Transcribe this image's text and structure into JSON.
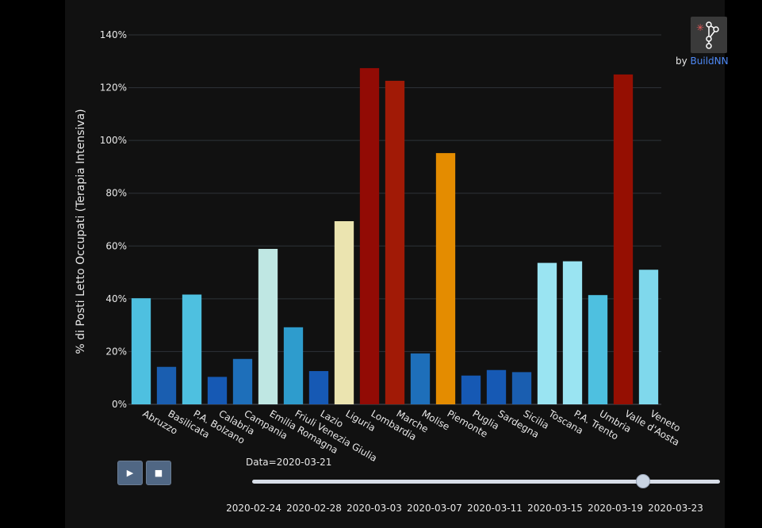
{
  "chart_data": {
    "type": "bar",
    "title": "",
    "xlabel": "",
    "ylabel": "% di Posti Letto Occupati (Terapia Intensiva)",
    "ylim": [
      0,
      140
    ],
    "yticks": [
      0,
      20,
      40,
      60,
      80,
      100,
      120,
      140
    ],
    "ytick_format": "{v}%",
    "grid": true,
    "categories": [
      "Abruzzo",
      "Basilicata",
      "P.A. Bolzano",
      "Calabria",
      "Campania",
      "Emilia Romagna",
      "Friuli Venezia Giulia",
      "Lazio",
      "Liguria",
      "Lombardia",
      "Marche",
      "Molise",
      "Piemonte",
      "Puglia",
      "Sardegna",
      "Sicilia",
      "Toscana",
      "P.A. Trento",
      "Umbria",
      "Valle d'Aosta",
      "Veneto"
    ],
    "values": [
      40.2,
      14.2,
      41.6,
      10.4,
      17.2,
      58.9,
      29.2,
      12.6,
      69.4,
      127.4,
      122.6,
      19.3,
      95.2,
      10.9,
      13.0,
      12.2,
      53.6,
      54.2,
      41.4,
      125.0,
      51.0
    ],
    "colors": [
      "#4ec0e0",
      "#1a5eb0",
      "#4ec0e0",
      "#1659b4",
      "#1e6fba",
      "#bfe7e3",
      "#2e9ccd",
      "#1659b4",
      "#ebe4b0",
      "#920b05",
      "#a11a06",
      "#1e6fba",
      "#e48c00",
      "#1659b4",
      "#1659b4",
      "#1a5eb0",
      "#9ae4f2",
      "#9ae4f2",
      "#4ec0e0",
      "#950f02",
      "#7fd8ec"
    ]
  },
  "controls": {
    "play_label": "▶",
    "stop_label": "■"
  },
  "slider": {
    "label": "Data=2020-03-21",
    "position": 0.836,
    "ticks": [
      "2020-02-24",
      "2020-02-28",
      "2020-03-03",
      "2020-03-07",
      "2020-03-11",
      "2020-03-15",
      "2020-03-19",
      "2020-03-23"
    ]
  },
  "credit": {
    "prefix": "by ",
    "brand": "BuildNN"
  },
  "icons": {
    "logo": "network-graph-icon",
    "play": "play-icon",
    "stop": "stop-icon"
  }
}
